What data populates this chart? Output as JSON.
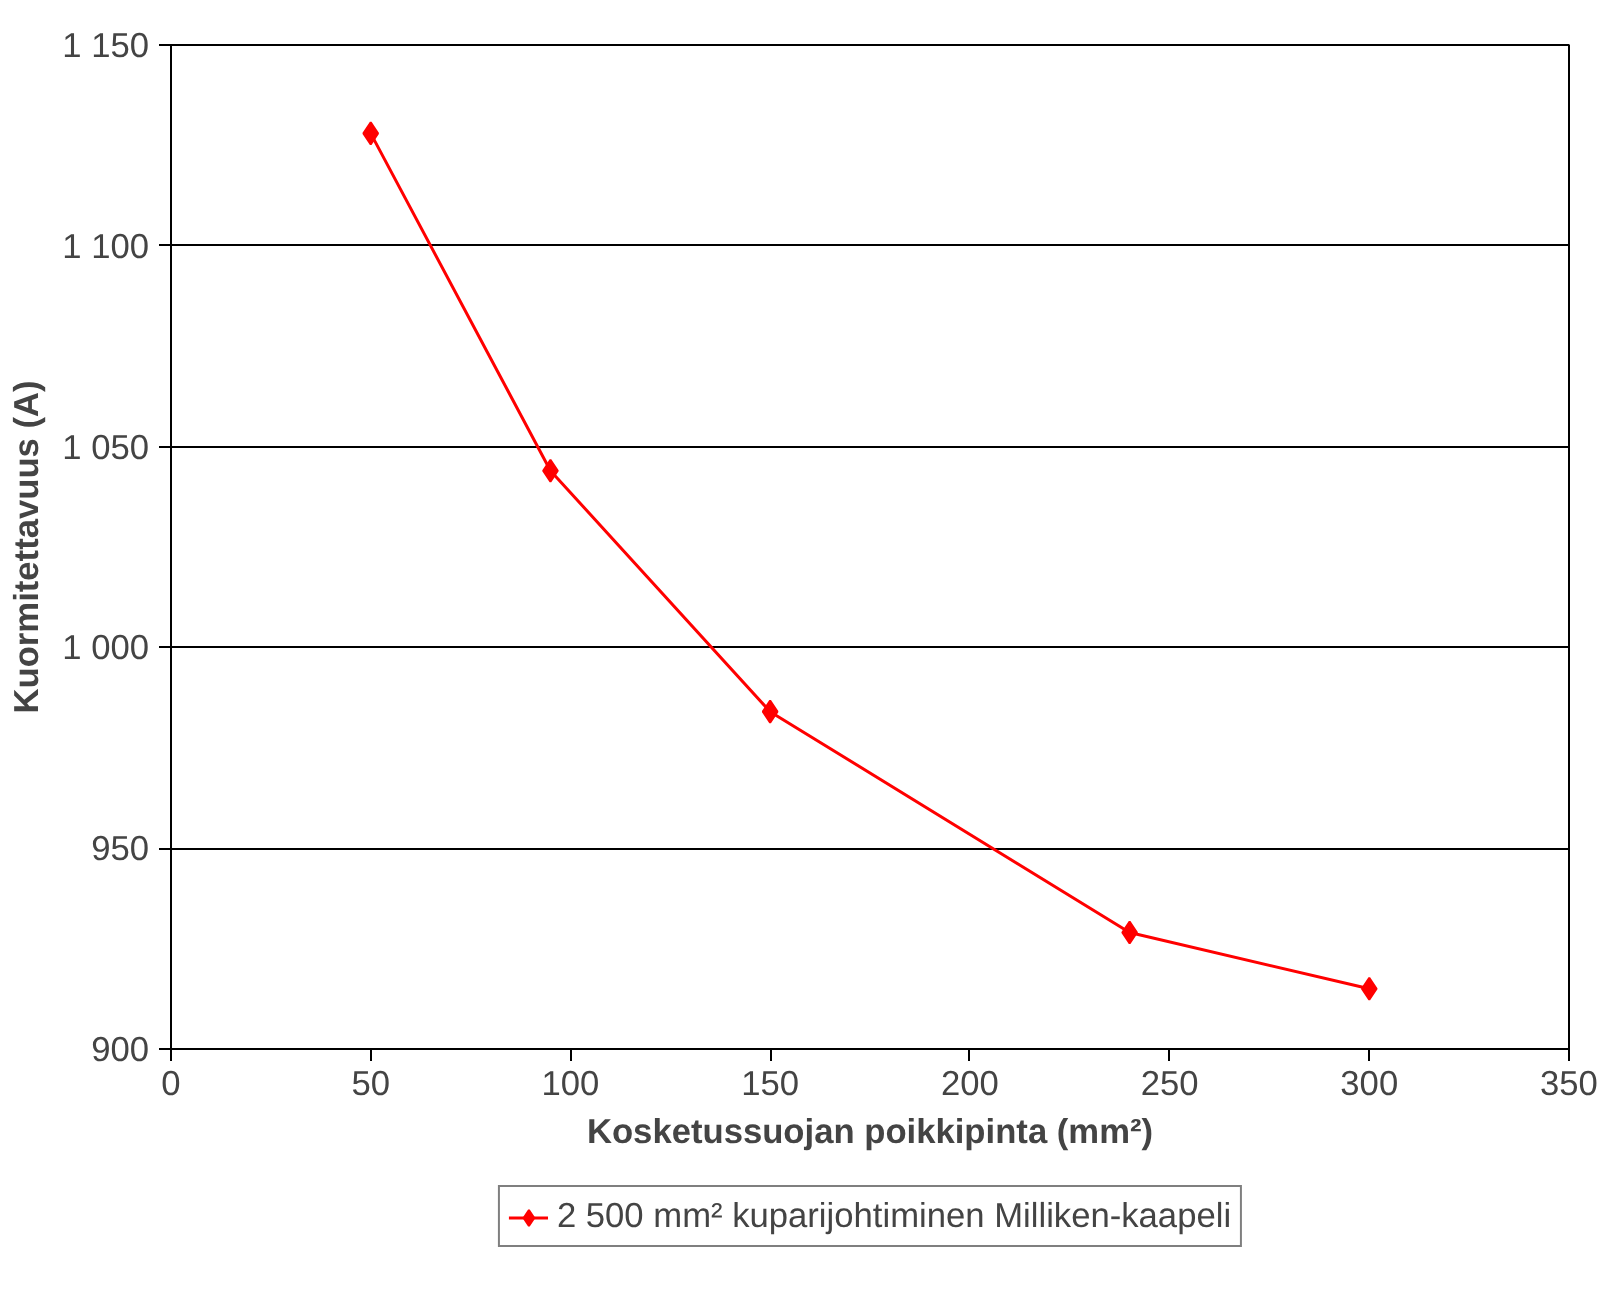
{
  "chart_data": {
    "type": "line",
    "xlabel": "Kosketussuojan poikkipinta (mm²)",
    "ylabel": "Kuormitettavuus (A)",
    "x": [
      50,
      95,
      150,
      240,
      300
    ],
    "series": [
      {
        "name": "2 500 mm² kuparijohtiminen Milliken-kaapeli",
        "color": "#ff0000",
        "values": [
          1128,
          1044,
          984,
          929,
          915
        ]
      }
    ],
    "xlim": [
      0,
      350
    ],
    "xticks": [
      0,
      50,
      100,
      150,
      200,
      250,
      300,
      350
    ],
    "ylim": [
      900,
      1150
    ],
    "yticks": [
      900,
      950,
      {
        "value": 1000,
        "label": "1 000"
      },
      {
        "value": 1050,
        "label": "1 050"
      },
      {
        "value": 1100,
        "label": "1 100"
      },
      {
        "value": 1150,
        "label": "1 150"
      }
    ],
    "grid": "y",
    "legend": "bottom",
    "marker": "diamond",
    "line_style": "solid"
  }
}
